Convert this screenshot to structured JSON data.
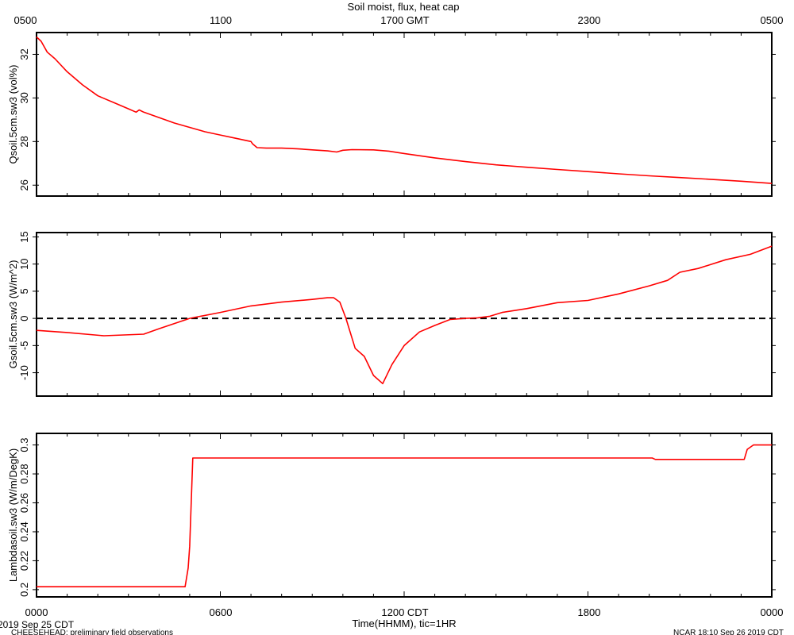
{
  "title": "Soil moist, flux, heat cap",
  "top_axis": {
    "label": "GMT",
    "ticks": [
      {
        "hour": 0,
        "label": "0500"
      },
      {
        "hour": 6,
        "label": "1100"
      },
      {
        "hour": 12,
        "label": "1700 GMT"
      },
      {
        "hour": 18,
        "label": "2300"
      },
      {
        "hour": 24,
        "label": "0500"
      }
    ]
  },
  "bottom_axis": {
    "label": "Time(HHMM), tic=1HR",
    "ticks": [
      {
        "hour": 0,
        "label": "0000"
      },
      {
        "hour": 6,
        "label": "0600"
      },
      {
        "hour": 12,
        "label": "1200 CDT"
      },
      {
        "hour": 18,
        "label": "1800"
      },
      {
        "hour": 24,
        "label": "0000"
      }
    ]
  },
  "footer": {
    "date": "2019 Sep 25 CDT",
    "project": "CHEESEHEAD: preliminary field observations",
    "credit": "NCAR 18:10 Sep 26 2019 CDT"
  },
  "colors": {
    "trace": "#ff0000",
    "axes": "#000000",
    "zero_line": "#000000"
  },
  "chart_data": [
    {
      "type": "line",
      "ylabel": "Qsoil.5cm.sw3 (vol%)",
      "ylim": [
        25.5,
        33
      ],
      "yticks": [
        26,
        28,
        30,
        32
      ],
      "xlim": [
        0,
        24
      ],
      "series": [
        {
          "x": [
            0,
            0.15,
            0.35,
            0.6,
            1.0,
            1.5,
            2.0,
            2.5,
            3.0,
            3.25,
            3.35,
            3.5,
            4.0,
            4.5,
            5.0,
            5.5,
            6.0,
            6.5,
            7.0,
            7.05,
            7.2,
            7.5,
            8.0,
            8.5,
            9.0,
            9.5,
            9.8,
            10.0,
            10.3,
            11.0,
            11.5,
            12.0,
            13.0,
            14.0,
            15.0,
            16.0,
            17.0,
            18.0,
            19.0,
            20.0,
            21.0,
            22.0,
            23.0,
            24.0
          ],
          "y": [
            32.8,
            32.6,
            32.1,
            31.8,
            31.2,
            30.6,
            30.1,
            29.8,
            29.5,
            29.35,
            29.45,
            29.35,
            29.1,
            28.85,
            28.65,
            28.45,
            28.3,
            28.15,
            28.0,
            27.9,
            27.72,
            27.7,
            27.7,
            27.67,
            27.62,
            27.57,
            27.52,
            27.6,
            27.63,
            27.62,
            27.56,
            27.45,
            27.25,
            27.08,
            26.93,
            26.82,
            26.72,
            26.62,
            26.52,
            26.43,
            26.35,
            26.27,
            26.18,
            26.08
          ]
        }
      ]
    },
    {
      "type": "line",
      "ylabel": "Gsoil.5cm.sw3 (W/m^2)",
      "ylim": [
        -14.3,
        15.8
      ],
      "yticks": [
        -10,
        -5,
        0,
        5,
        10,
        15
      ],
      "xlim": [
        0,
        24
      ],
      "reference_line": 0,
      "series": [
        {
          "x": [
            0,
            1.0,
            2.2,
            3.5,
            4.0,
            5.0,
            6.0,
            7.0,
            8.0,
            9.0,
            9.5,
            9.7,
            9.9,
            10.1,
            10.4,
            10.7,
            11.0,
            11.3,
            11.6,
            12.0,
            12.5,
            13.0,
            13.5,
            14.0,
            14.4,
            14.8,
            15.2,
            16.0,
            17.0,
            18.0,
            19.0,
            20.0,
            20.6,
            21.0,
            21.6,
            22.5,
            23.3,
            24.0
          ],
          "y": [
            -2.2,
            -2.6,
            -3.2,
            -2.9,
            -1.9,
            0,
            1.1,
            2.3,
            3.0,
            3.5,
            3.8,
            3.8,
            3.0,
            0,
            -5.5,
            -7.0,
            -10.5,
            -12.0,
            -8.5,
            -5.0,
            -2.5,
            -1.3,
            -0.2,
            0,
            0.1,
            0.4,
            1.1,
            1.8,
            2.9,
            3.3,
            4.5,
            6.0,
            7.0,
            8.5,
            9.2,
            10.8,
            11.8,
            13.3
          ]
        }
      ]
    },
    {
      "type": "line",
      "ylabel": "Lambdasoil.sw3 (W/m/DegK)",
      "ylim": [
        0.195,
        0.308
      ],
      "yticks": [
        0.2,
        0.22,
        0.24,
        0.26,
        0.28,
        0.3
      ],
      "xlim": [
        0,
        24
      ],
      "series": [
        {
          "x": [
            0,
            4.85,
            4.95,
            5.0,
            5.1,
            20.1,
            20.2,
            23.1,
            23.2,
            23.4,
            24.0
          ],
          "y": [
            0.202,
            0.202,
            0.215,
            0.23,
            0.291,
            0.291,
            0.29,
            0.29,
            0.297,
            0.3,
            0.3
          ]
        }
      ]
    }
  ]
}
